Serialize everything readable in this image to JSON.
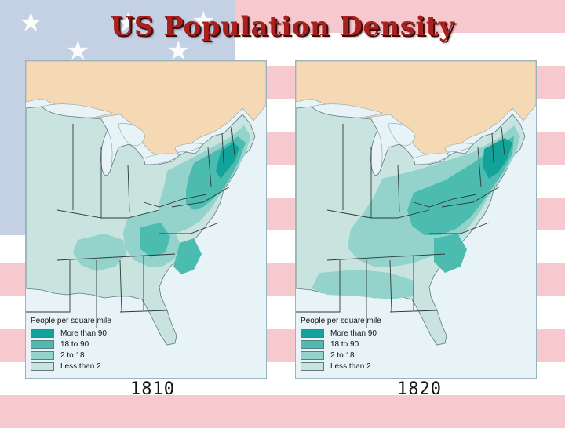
{
  "title": "US Population Density",
  "maps": [
    {
      "year": "1810",
      "legend": {
        "title": "People per square mile",
        "items": [
          {
            "label": "More than 90",
            "color": "#14a39a"
          },
          {
            "label": "18 to 90",
            "color": "#4cbcb1"
          },
          {
            "label": "2 to 18",
            "color": "#93d3cc"
          },
          {
            "label": "Less than 2",
            "color": "#c9e3de"
          }
        ]
      }
    },
    {
      "year": "1820",
      "legend": {
        "title": "People per square mile",
        "items": [
          {
            "label": "More than 90",
            "color": "#14a39a"
          },
          {
            "label": "18 to 90",
            "color": "#4cbcb1"
          },
          {
            "label": "2 to 18",
            "color": "#93d3cc"
          },
          {
            "label": "Less than 2",
            "color": "#c9e3de"
          }
        ]
      }
    }
  ],
  "colors": {
    "title": "#a9201e",
    "water": "#e8f3f7",
    "canada": "#f5d9b5",
    "land_base": "#c9e3de",
    "flag_stripe": "#f6c9cf",
    "flag_canton": "#c4d0e4"
  }
}
